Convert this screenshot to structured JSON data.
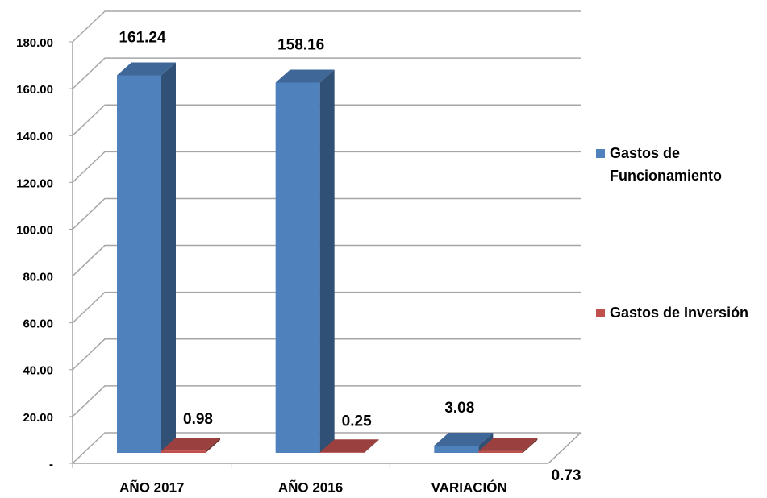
{
  "chart_data": {
    "type": "bar3d",
    "categories": [
      "AÑO 2017",
      "AÑO 2016",
      "VARIACIÓN"
    ],
    "series": [
      {
        "name": "Gastos de Funcionamiento",
        "color": "#4f81bd",
        "values": [
          161.24,
          158.16,
          3.08
        ]
      },
      {
        "name": "Gastos de Inversión",
        "color": "#c0504d",
        "values": [
          0.98,
          0.25,
          0.73
        ]
      }
    ],
    "ylim": [
      0,
      180
    ],
    "yticks": [
      {
        "value": 0,
        "label": "-"
      },
      {
        "value": 20,
        "label": "20.00"
      },
      {
        "value": 40,
        "label": "40.00"
      },
      {
        "value": 60,
        "label": "60.00"
      },
      {
        "value": 80,
        "label": "80.00"
      },
      {
        "value": 100,
        "label": "100.00"
      },
      {
        "value": 120,
        "label": "120.00"
      },
      {
        "value": 140,
        "label": "140.00"
      },
      {
        "value": 160,
        "label": "160.00"
      },
      {
        "value": 180,
        "label": "180.00"
      }
    ],
    "grid": true,
    "legend": "right"
  }
}
